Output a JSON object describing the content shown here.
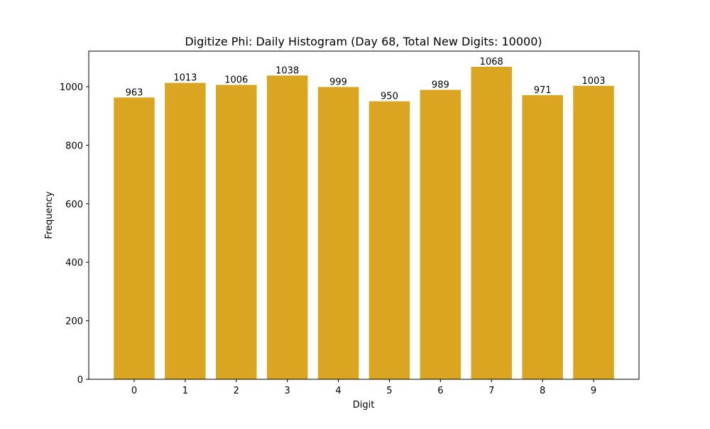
{
  "chart_data": {
    "type": "bar",
    "title": "Digitize Phi: Daily Histogram (Day 68, Total New Digits: 10000)",
    "xlabel": "Digit",
    "ylabel": "Frequency",
    "categories": [
      "0",
      "1",
      "2",
      "3",
      "4",
      "5",
      "6",
      "7",
      "8",
      "9"
    ],
    "values": [
      963,
      1013,
      1006,
      1038,
      999,
      950,
      989,
      1068,
      971,
      1003
    ],
    "yticks": [
      0,
      200,
      400,
      600,
      800,
      1000
    ],
    "ylim": [
      0,
      1121.4
    ],
    "xlim": [
      -0.89,
      9.89
    ],
    "bar_color": "#DAA520",
    "grid": false
  }
}
